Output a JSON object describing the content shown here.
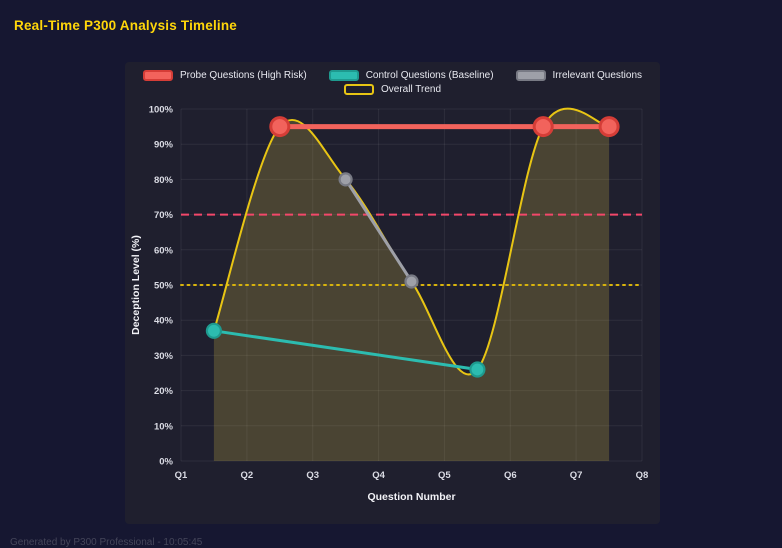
{
  "page": {
    "title": "Real-Time P300 Analysis Timeline",
    "footer": "Generated by P300 Professional - 10:05:45",
    "title_color": "#ffd60a"
  },
  "chart_data": {
    "type": "line",
    "title": "Real-Time P300 Analysis Timeline",
    "xlabel": "Question Number",
    "ylabel": "Deception Level (%)",
    "x_ticks": [
      "Q1",
      "Q2",
      "Q3",
      "Q4",
      "Q5",
      "Q6",
      "Q7",
      "Q8"
    ],
    "x_range": [
      1,
      8
    ],
    "ylim": [
      0,
      100
    ],
    "y_tick_step": 10,
    "y_tick_suffix": "%",
    "grid": true,
    "legend_position": "top",
    "series": [
      {
        "name": "Probe Questions (High Risk)",
        "color": "#f2635c",
        "border": "#d53d37",
        "points": [
          [
            2.5,
            95
          ],
          [
            6.5,
            95
          ],
          [
            7.5,
            95
          ]
        ],
        "line_width": 5,
        "point_radius": 9
      },
      {
        "name": "Control Questions (Baseline)",
        "color": "#2cbcb0",
        "border": "#1e9a8f",
        "points": [
          [
            1.5,
            37
          ],
          [
            5.5,
            26
          ]
        ],
        "line_width": 3,
        "point_radius": 7
      },
      {
        "name": "Irrelevant Questions",
        "color": "#9ea0a8",
        "border": "#787a84",
        "points": [
          [
            3.5,
            80
          ],
          [
            4.5,
            51
          ]
        ],
        "line_width": 3,
        "point_radius": 6
      },
      {
        "name": "Overall Trend",
        "color": "#e8c514",
        "swatch_fill": "transparent",
        "points": [
          [
            1.5,
            37
          ],
          [
            2.5,
            95
          ],
          [
            3.5,
            80
          ],
          [
            4.5,
            51
          ],
          [
            5.5,
            26
          ],
          [
            6.5,
            95
          ],
          [
            7.5,
            95
          ]
        ],
        "smooth": true,
        "fill": "rgba(226, 202, 74, 0.22)",
        "line_width": 2,
        "point_radius": 0
      }
    ],
    "thresholds": [
      {
        "y": 70,
        "color": "#f2476a",
        "style": "dashed"
      },
      {
        "y": 50,
        "color": "#d9b40c",
        "style": "dotted"
      }
    ]
  }
}
